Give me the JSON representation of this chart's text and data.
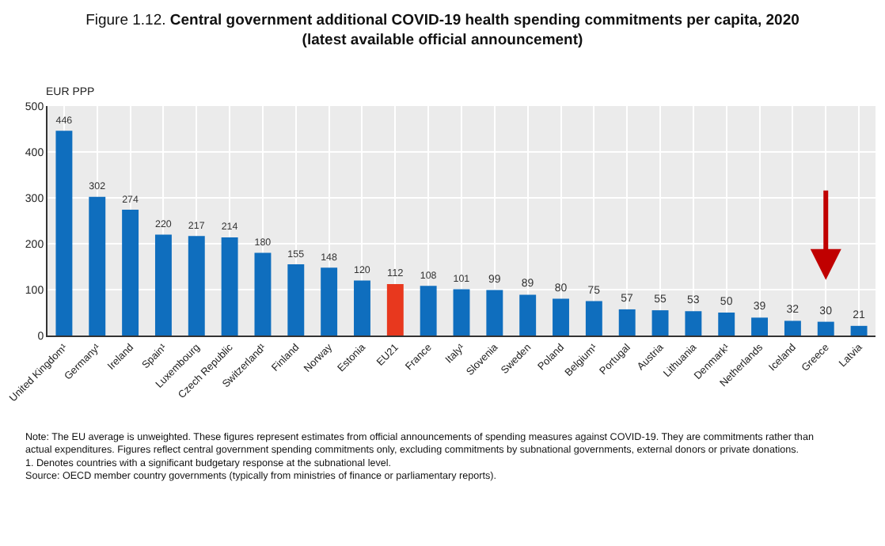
{
  "chart_data": {
    "type": "bar",
    "title": "Figure 1.12. Central government additional COVID-19 health spending commitments per capita, 2020\n(latest available official announcement)",
    "ylabel": "EUR PPP",
    "categories": [
      "United Kingdom¹",
      "Germany¹",
      "Ireland",
      "Spain¹",
      "Luxembourg",
      "Czech Republic",
      "Switzerland¹",
      "Finland",
      "Norway",
      "Estonia",
      "EU21",
      "France",
      "Italy¹",
      "Slovenia",
      "Sweden",
      "Poland",
      "Belgium¹",
      "Portugal",
      "Austria",
      "Lithuania",
      "Denmark¹",
      "Netherlands",
      "Iceland",
      "Greece",
      "Latvia"
    ],
    "values": [
      446,
      302,
      274,
      220,
      217,
      214,
      180,
      155,
      148,
      120,
      112,
      108,
      101,
      99,
      89,
      80,
      75,
      57,
      55,
      53,
      50,
      39,
      32,
      30,
      21
    ],
    "colors": [
      "#0f6ebe",
      "#0f6ebe",
      "#0f6ebe",
      "#0f6ebe",
      "#0f6ebe",
      "#0f6ebe",
      "#0f6ebe",
      "#0f6ebe",
      "#0f6ebe",
      "#0f6ebe",
      "#e8381e",
      "#0f6ebe",
      "#0f6ebe",
      "#0f6ebe",
      "#0f6ebe",
      "#0f6ebe",
      "#0f6ebe",
      "#0f6ebe",
      "#0f6ebe",
      "#0f6ebe",
      "#0f6ebe",
      "#0f6ebe",
      "#0f6ebe",
      "#0f6ebe",
      "#0f6ebe"
    ],
    "ylim": [
      0,
      500
    ],
    "yticks": [
      0,
      100,
      200,
      300,
      400,
      500
    ],
    "grid": true,
    "data_labels": true,
    "annotations": [
      "Note: The EU average is unweighted. These figures represent estimates from official announcements of spending measures against COVID-19. They are commitments rather than actual expenditures. Figures reflect central government spending commitments only, excluding commitments by subnational governments, external donors or private donations.",
      "1. Denotes countries with a significant budgetary response at the subnational level.",
      "Source: OECD member country governments (typically from ministries of finance or parliamentary reports)."
    ]
  }
}
